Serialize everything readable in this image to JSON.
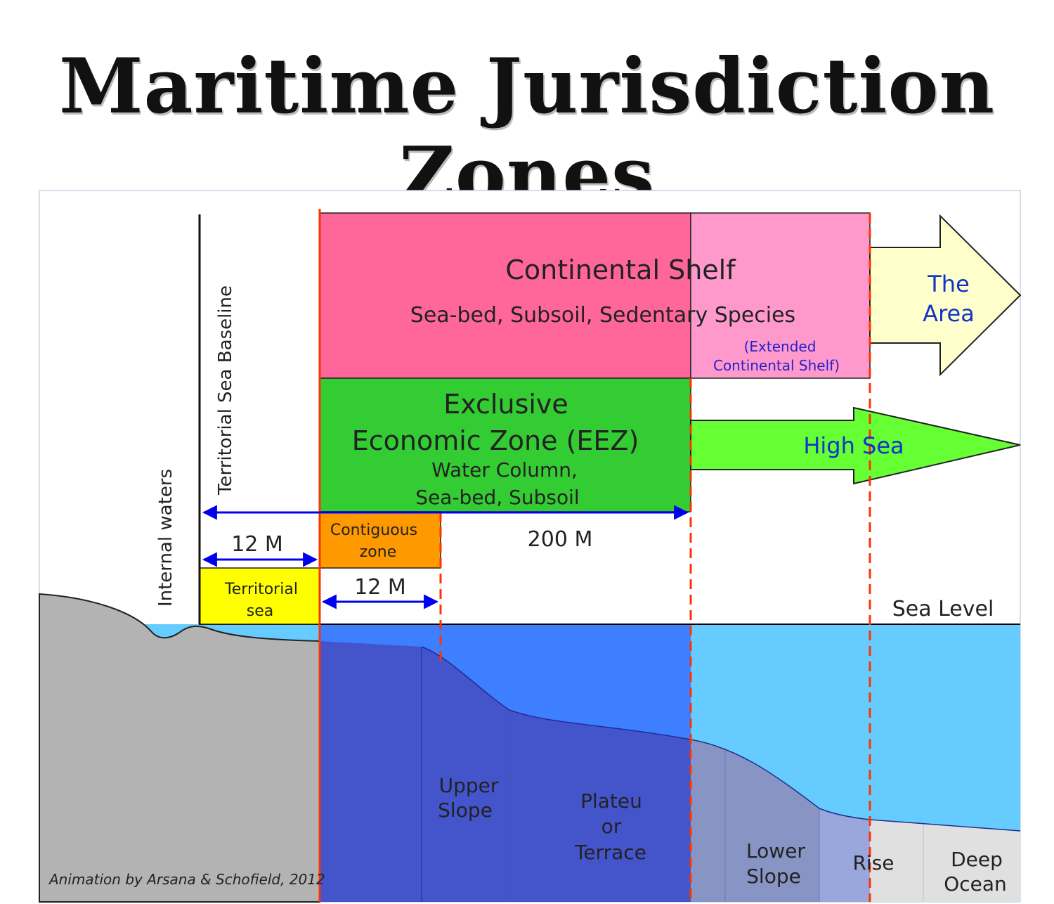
{
  "title": "Maritime Jurisdiction Zones",
  "labels": {
    "continental_shelf": "Continental Shelf",
    "cs_subtitle": "Sea-bed, Subsoil, Sedentary Species",
    "extended_1": "(Extended",
    "extended_2": "Continental Shelf)",
    "area_1": "The",
    "area_2": "Area",
    "eez_1": "Exclusive",
    "eez_2": "Economic Zone (EEZ)",
    "eez_3": "Water Column,",
    "eez_4": "Sea-bed, Subsoil",
    "high_sea": "High Sea",
    "contiguous_1": "Contiguous",
    "contiguous_2": "zone",
    "territorial_1": "Territorial",
    "territorial_2": "sea",
    "m200": "200 M",
    "m12_top": "12 M",
    "m12_bottom": "12 M",
    "baseline": "Territorial Sea Baseline",
    "internal": "Internal waters",
    "sea_level": "Sea Level",
    "upper_slope_1": "Upper",
    "upper_slope_2": "Slope",
    "plateau_1": "Plateu",
    "plateau_2": "or",
    "plateau_3": "Terrace",
    "lower_slope_1": "Lower",
    "lower_slope_2": "Slope",
    "rise": "Rise",
    "deep_1": "Deep",
    "deep_2": "Ocean",
    "credit": "Animation by Arsana & Schofield, 2012"
  },
  "colors": {
    "continental_shelf": "#ff6699",
    "extended_shelf": "#ff99cc",
    "area_arrow": "#ffffcc",
    "eez": "#33cc33",
    "high_sea_arrow": "#66ff33",
    "contiguous": "#ff9900",
    "territorial": "#ffff00",
    "land": "#b3b3b3",
    "sea": "#66ccff",
    "deep_blue": "#3d7fff",
    "boundary_red": "#ff3300",
    "measure_blue": "#0000ee"
  }
}
